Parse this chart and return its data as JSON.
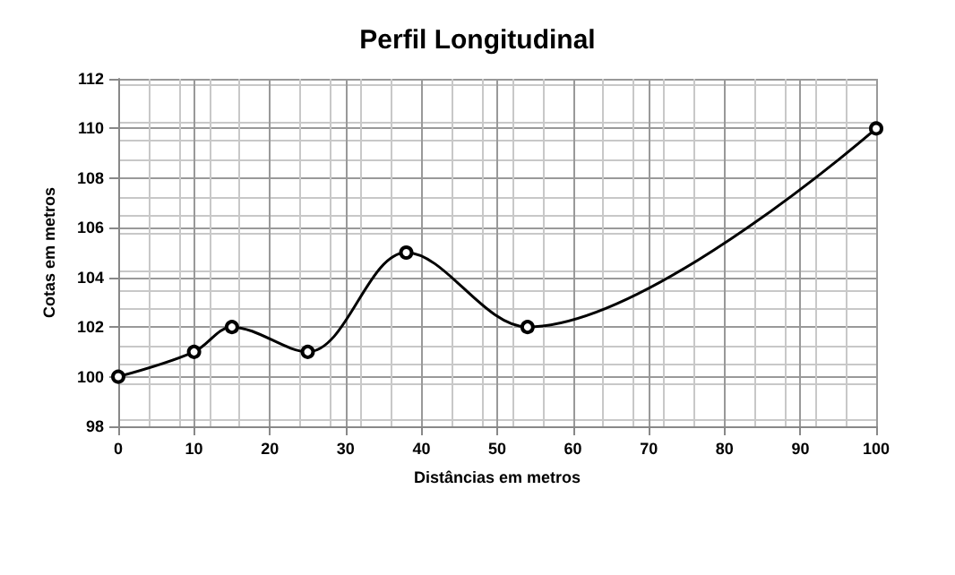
{
  "chart_data": {
    "type": "line",
    "title": "Perfil Longitudinal",
    "xlabel": "Distâncias em metros",
    "ylabel": "Cotas em metros",
    "x": [
      0,
      10,
      15,
      25,
      38,
      54,
      100
    ],
    "series": [
      {
        "color": "#000000",
        "values": [
          100,
          101,
          102,
          101,
          105,
          102,
          110
        ]
      }
    ],
    "xlim": [
      0,
      100
    ],
    "xticks": [
      0,
      10,
      20,
      30,
      40,
      50,
      60,
      70,
      80,
      90,
      100
    ],
    "ylim": [
      98,
      112
    ],
    "yticks": [
      98,
      100,
      102,
      104,
      106,
      108,
      110,
      112
    ],
    "grid": true,
    "marker": "circle",
    "line_style": "solid"
  }
}
